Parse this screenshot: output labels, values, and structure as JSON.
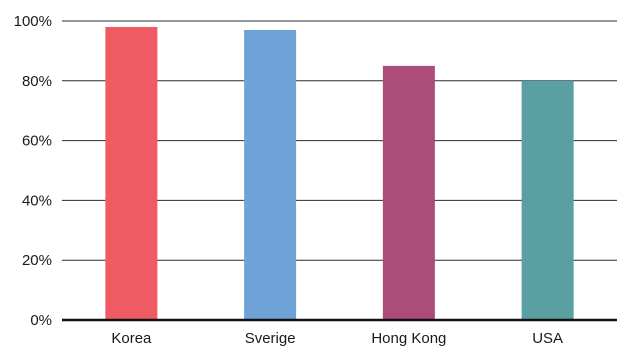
{
  "chart_data": {
    "type": "bar",
    "categories": [
      "Korea",
      "Sverige",
      "Hong Kong",
      "USA"
    ],
    "values": [
      98,
      97,
      85,
      80
    ],
    "colors": [
      "#f05a62",
      "#6fa3d8",
      "#ac4c78",
      "#5a9fa1"
    ],
    "ylim": [
      0,
      100
    ],
    "yticks": [
      0,
      20,
      40,
      60,
      80,
      100
    ],
    "ytick_labels": [
      "0%",
      "20%",
      "40%",
      "60%",
      "80%",
      "100%"
    ],
    "grid": true,
    "title": "",
    "xlabel": "",
    "ylabel": ""
  }
}
